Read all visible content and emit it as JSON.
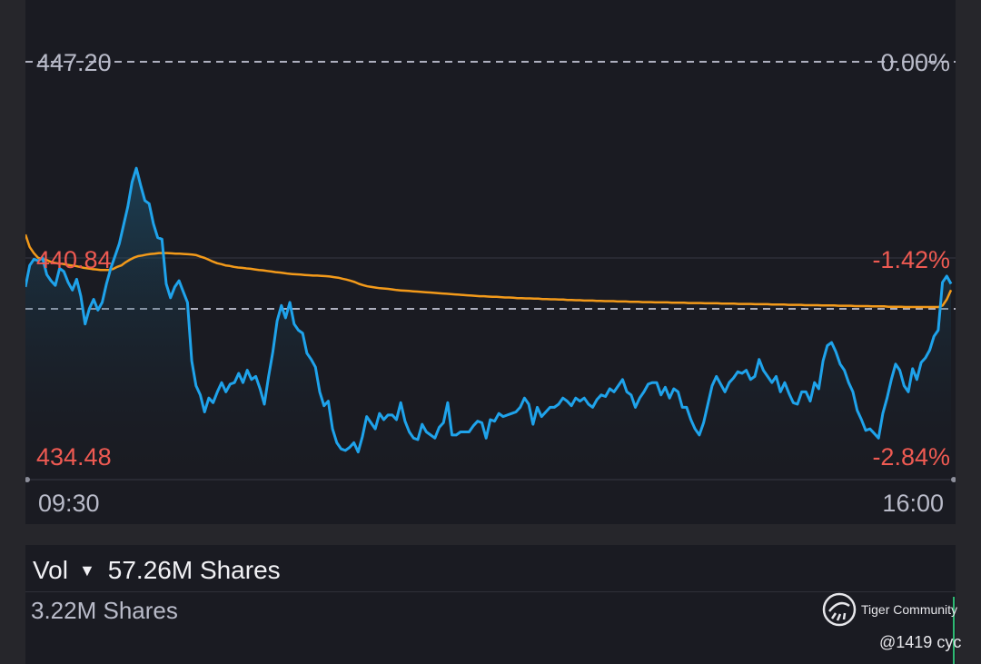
{
  "chart_data": {
    "type": "line",
    "title": "",
    "price_axis": {
      "top": "447.20",
      "reference": "440.84",
      "bottom": "434.48",
      "ylim": [
        434.48,
        447.2
      ],
      "reference_value": 440.84
    },
    "percent_axis": {
      "top": "0.00%",
      "reference": "-1.42%",
      "bottom": "-2.84%"
    },
    "x_ticks": [
      "09:30",
      "16:00"
    ],
    "series": [
      {
        "color": "#1fa3eb",
        "values": [
          439.9,
          440.6,
          440.8,
          440.75,
          440.85,
          440.3,
          440.1,
          439.95,
          440.5,
          440.4,
          440.05,
          439.8,
          440.15,
          439.6,
          438.7,
          439.2,
          439.5,
          439.15,
          439.4,
          440.0,
          440.5,
          440.9,
          441.3,
          441.9,
          442.5,
          443.3,
          443.75,
          443.2,
          442.7,
          442.6,
          441.95,
          441.5,
          441.45,
          440.0,
          439.55,
          439.9,
          440.1,
          439.75,
          439.4,
          437.5,
          436.7,
          436.4,
          435.85,
          436.3,
          436.15,
          436.5,
          436.8,
          436.5,
          436.75,
          436.8,
          437.1,
          436.8,
          437.2,
          436.9,
          437.0,
          436.6,
          436.1,
          437.0,
          437.8,
          438.8,
          439.3,
          438.9,
          439.4,
          438.7,
          438.5,
          438.4,
          437.75,
          437.55,
          437.3,
          436.5,
          436.05,
          436.2,
          435.3,
          434.85,
          434.65,
          434.6,
          434.7,
          434.85,
          434.55,
          435.05,
          435.7,
          435.5,
          435.3,
          435.8,
          435.6,
          435.75,
          435.75,
          435.6,
          436.15,
          435.55,
          435.2,
          435.0,
          434.95,
          435.45,
          435.2,
          435.1,
          435.0,
          435.35,
          435.5,
          436.15,
          435.1,
          435.1,
          435.2,
          435.2,
          435.2,
          435.4,
          435.55,
          435.5,
          435.0,
          435.6,
          435.55,
          435.8,
          435.7,
          435.75,
          435.8,
          435.85,
          436.0,
          436.3,
          436.1,
          435.45,
          436.0,
          435.7,
          435.85,
          436.0,
          436.0,
          436.1,
          436.3,
          436.2,
          436.05,
          436.3,
          436.2,
          436.3,
          436.1,
          436.0,
          436.25,
          436.4,
          436.35,
          436.6,
          436.5,
          436.7,
          436.9,
          436.5,
          436.4,
          436.0,
          436.3,
          436.5,
          436.75,
          436.8,
          436.8,
          436.4,
          436.65,
          436.3,
          436.6,
          436.5,
          436.0,
          436.0,
          435.6,
          435.3,
          435.1,
          435.5,
          436.1,
          436.7,
          437.0,
          436.75,
          436.5,
          436.8,
          436.95,
          437.15,
          437.1,
          437.2,
          436.9,
          437.0,
          437.55,
          437.2,
          437.0,
          436.8,
          437.0,
          436.5,
          436.8,
          436.45,
          436.15,
          436.1,
          436.5,
          436.5,
          436.2,
          436.8,
          436.6,
          437.5,
          438.0,
          438.1,
          437.8,
          437.4,
          437.2,
          436.8,
          436.5,
          435.9,
          435.6,
          435.25,
          435.3,
          435.15,
          435.0,
          435.8,
          436.3,
          436.9,
          437.4,
          437.2,
          436.7,
          436.5,
          437.25,
          436.9,
          437.45,
          437.6,
          437.85,
          438.3,
          438.5,
          440.05,
          440.25,
          440.0
        ]
      },
      {
        "color": "#f39a1a",
        "values": [
          441.6,
          441.2,
          441.0,
          440.85,
          440.8,
          440.78,
          440.72,
          440.68,
          440.66,
          440.65,
          440.62,
          440.6,
          440.58,
          440.55,
          440.52,
          440.5,
          440.48,
          440.47,
          440.45,
          440.45,
          440.45,
          440.48,
          440.55,
          440.6,
          440.7,
          440.78,
          440.85,
          440.9,
          440.92,
          440.95,
          440.97,
          440.98,
          441.0,
          441.0,
          441.0,
          440.99,
          440.98,
          440.98,
          440.97,
          440.96,
          440.95,
          440.93,
          440.88,
          440.84,
          440.78,
          440.72,
          440.67,
          440.64,
          440.6,
          440.58,
          440.55,
          440.53,
          440.52,
          440.5,
          440.49,
          440.47,
          440.45,
          440.44,
          440.42,
          440.4,
          440.38,
          440.37,
          440.35,
          440.33,
          440.32,
          440.31,
          440.3,
          440.29,
          440.28,
          440.27,
          440.27,
          440.26,
          440.25,
          440.24,
          440.22,
          440.2,
          440.17,
          440.14,
          440.1,
          440.06,
          440.0,
          439.96,
          439.92,
          439.9,
          439.88,
          439.86,
          439.85,
          439.84,
          439.82,
          439.8,
          439.79,
          439.78,
          439.77,
          439.76,
          439.75,
          439.74,
          439.73,
          439.72,
          439.71,
          439.7,
          439.69,
          439.68,
          439.67,
          439.66,
          439.65,
          439.64,
          439.63,
          439.62,
          439.61,
          439.6,
          439.6,
          439.59,
          439.58,
          439.58,
          439.57,
          439.56,
          439.56,
          439.55,
          439.54,
          439.54,
          439.53,
          439.53,
          439.52,
          439.52,
          439.51,
          439.51,
          439.5,
          439.5,
          439.49,
          439.49,
          439.48,
          439.48,
          439.47,
          439.47,
          439.46,
          439.46,
          439.46,
          439.45,
          439.45,
          439.44,
          439.44,
          439.44,
          439.43,
          439.43,
          439.43,
          439.42,
          439.42,
          439.42,
          439.41,
          439.41,
          439.41,
          439.4,
          439.4,
          439.4,
          439.4,
          439.39,
          439.39,
          439.39,
          439.39,
          439.38,
          439.38,
          439.38,
          439.38,
          439.37,
          439.37,
          439.37,
          439.37,
          439.36,
          439.36,
          439.36,
          439.36,
          439.35,
          439.35,
          439.35,
          439.35,
          439.34,
          439.34,
          439.34,
          439.34,
          439.33,
          439.33,
          439.33,
          439.33,
          439.32,
          439.32,
          439.32,
          439.32,
          439.31,
          439.31,
          439.31,
          439.31,
          439.3,
          439.3,
          439.3,
          439.3,
          439.29,
          439.29,
          439.29,
          439.29,
          439.28,
          439.28,
          439.28,
          439.28,
          439.27,
          439.27,
          439.27,
          439.27,
          439.26,
          439.26,
          439.26,
          439.26,
          439.25,
          439.25,
          439.25,
          439.25,
          439.25,
          439.25,
          439.25,
          439.25,
          439.25,
          439.3,
          439.5,
          439.8
        ]
      }
    ],
    "grid": true
  },
  "volume": {
    "label": "Vol",
    "total": "57.26M Shares",
    "sub": "3.22M Shares"
  },
  "watermark": {
    "brand": "Tiger Community",
    "handle": "@1419 cyc"
  },
  "colors": {
    "price_line": "#1fa3eb",
    "avg_line": "#f39a1a",
    "negative": "#ee5a52",
    "axis_text": "#b9bbc9",
    "panel_bg": "#1a1b22"
  }
}
